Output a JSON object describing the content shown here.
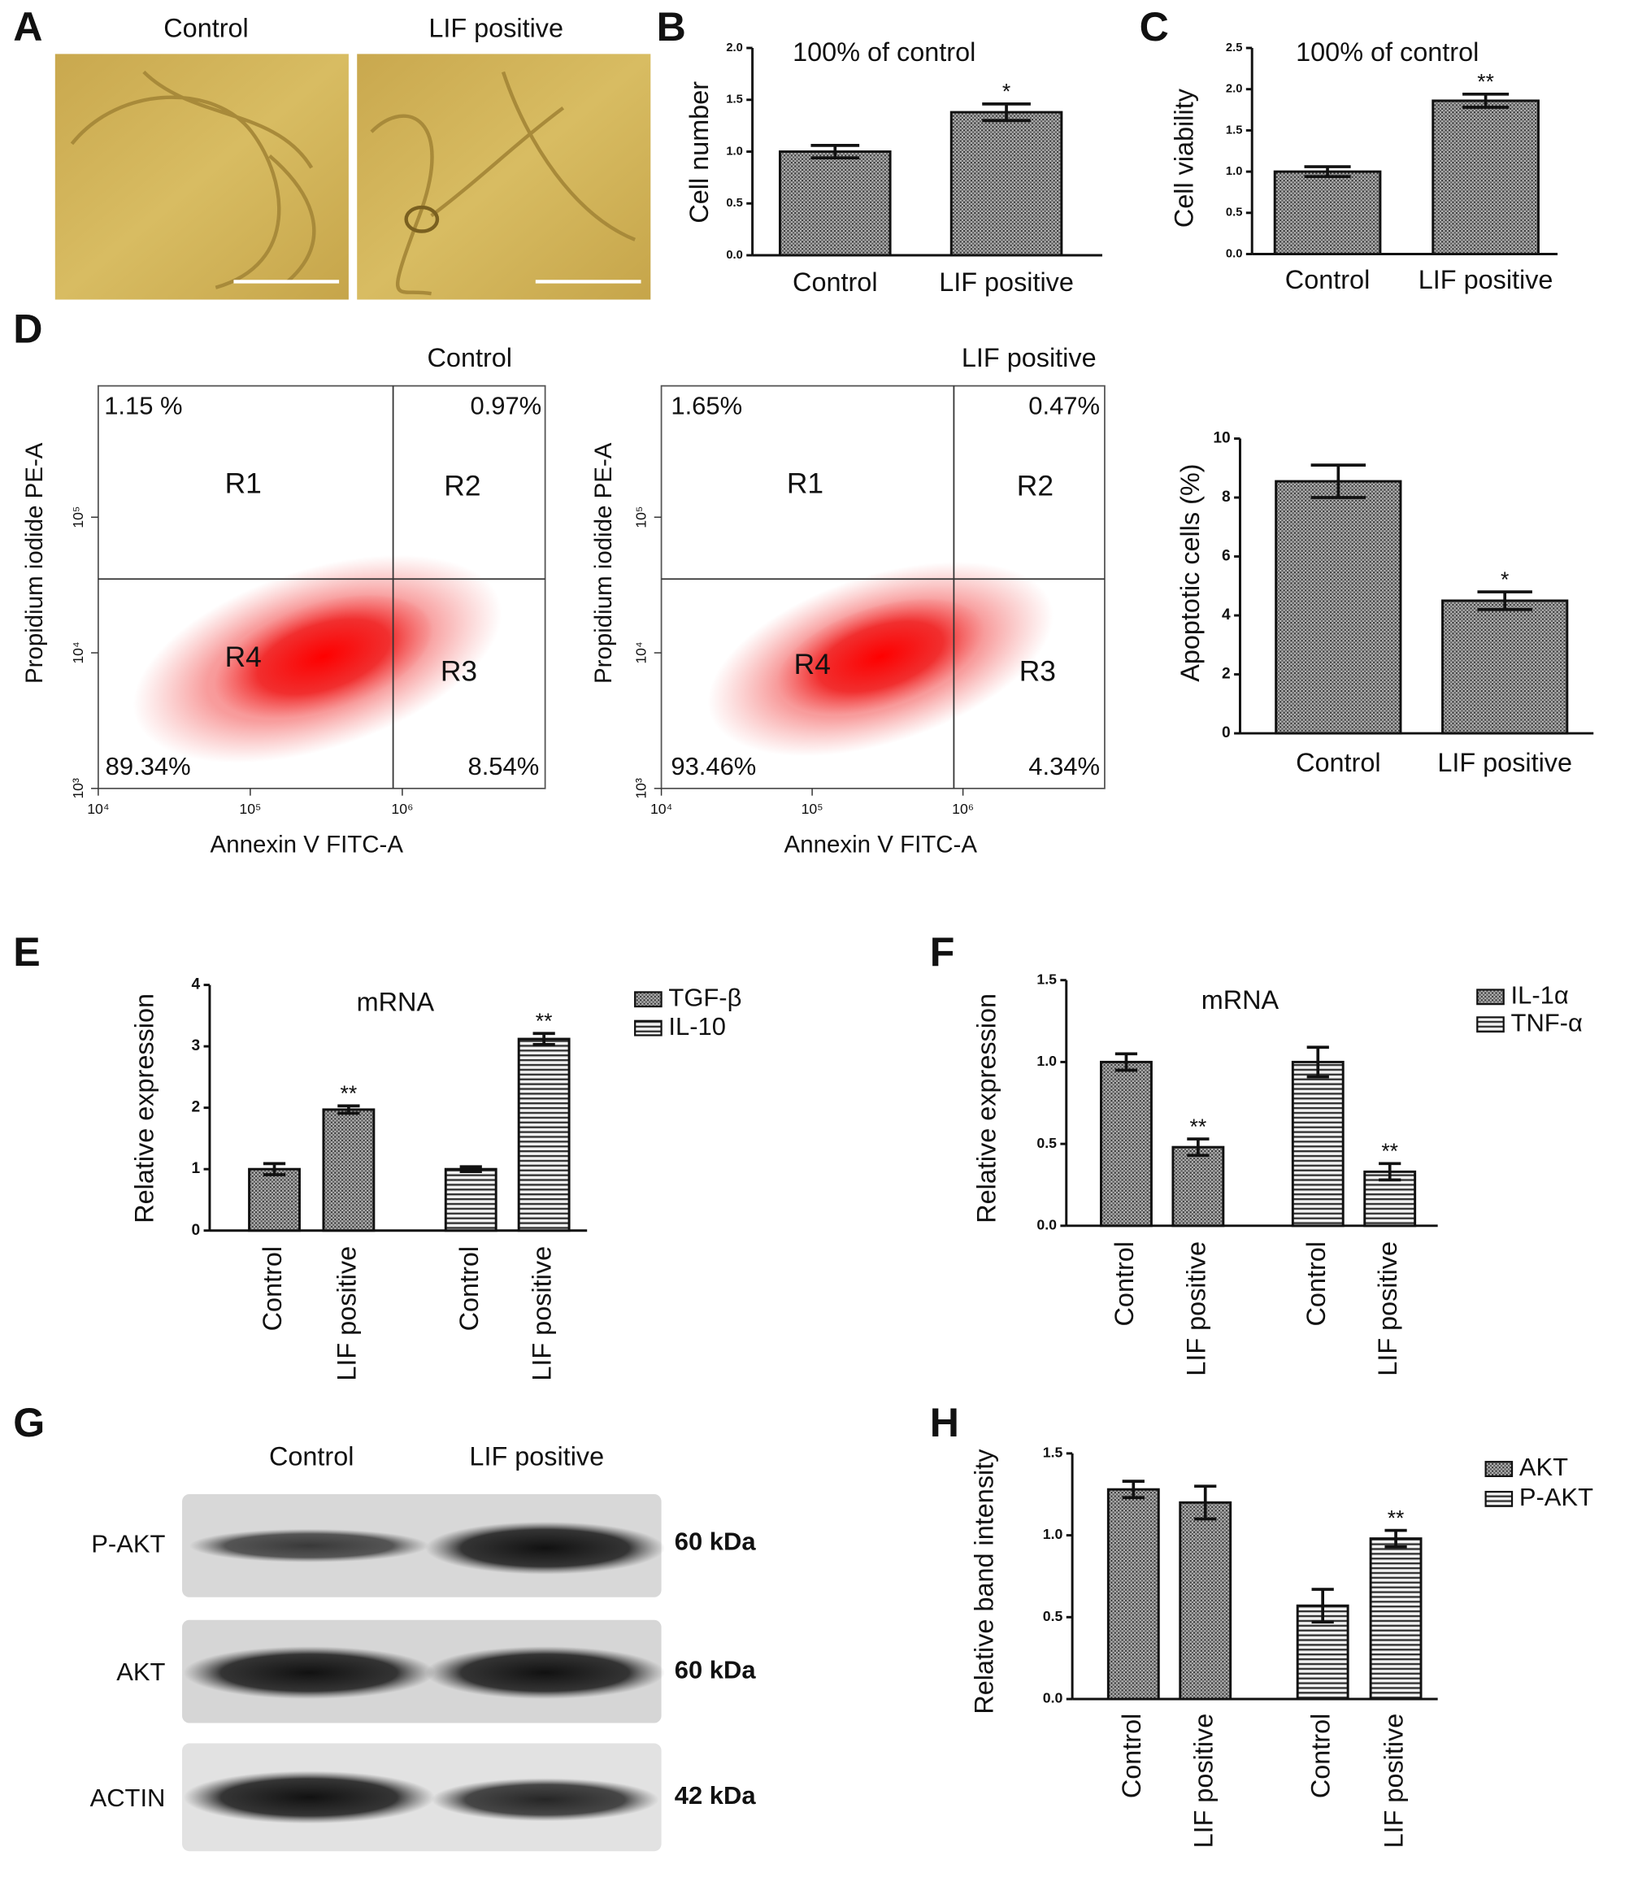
{
  "chart_data": [
    {
      "type": "micrograph",
      "panel": "A",
      "titles": [
        "Control",
        "LIF positive"
      ]
    },
    {
      "type": "bar",
      "panel": "B",
      "ylabel": "Cell number",
      "annotation": "100% of control",
      "categories": [
        "Control",
        "LIF positive"
      ],
      "values": [
        1.0,
        1.38
      ],
      "errors": [
        0.06,
        0.08
      ],
      "significance": [
        null,
        "*"
      ],
      "pattern": "dots",
      "ylim": [
        0,
        2
      ],
      "yticks": [
        {
          "value": 0,
          "label": "0.0"
        },
        0.5,
        {
          "value": 1,
          "label": "1.0"
        },
        1.5,
        {
          "value": 2,
          "label": "2.0"
        }
      ]
    },
    {
      "type": "bar",
      "panel": "C",
      "ylabel": "Cell viability",
      "annotation": "100% of control",
      "categories": [
        "Control",
        "LIF positive"
      ],
      "values": [
        1.0,
        1.86
      ],
      "errors": [
        0.06,
        0.08
      ],
      "significance": [
        null,
        "**"
      ],
      "pattern": "dots",
      "ylim": [
        0,
        2.5
      ],
      "yticks": [
        {
          "value": 0,
          "label": "0.0"
        },
        0.5,
        {
          "value": 1,
          "label": "1.0"
        },
        1.5,
        {
          "value": 2,
          "label": "2.0"
        },
        2.5
      ]
    },
    {
      "type": "flow",
      "panel": "D",
      "title": "Control",
      "xlabel": "Annexin V FITC-A",
      "ylabel": "Propidium iodide PE-A",
      "log_scale": true,
      "quadrants": [
        "R1",
        "R2",
        "R3",
        "R4"
      ],
      "values": [
        1.15,
        0.97,
        8.54,
        89.34
      ],
      "value_labels": [
        "1.15 %",
        "0.97%",
        "8.54%",
        "89.34%"
      ],
      "gate": {
        "x": 870000,
        "y": 35000
      },
      "xlim": [
        10000,
        8700000
      ],
      "xticks": [
        {
          "value": 10000,
          "label": "10⁴"
        },
        {
          "value": 100000,
          "label": "10⁵"
        },
        {
          "value": 1000000,
          "label": "10⁶"
        }
      ],
      "ylim": [
        1000,
        930000
      ],
      "yticks": [
        {
          "value": 1000,
          "label": "10³"
        },
        {
          "value": 10000,
          "label": "10⁴"
        },
        {
          "value": 100000,
          "label": "10⁵"
        }
      ]
    },
    {
      "type": "flow",
      "title": "LIF positive",
      "xlabel": "Annexin V FITC-A",
      "ylabel": "Propidium iodide PE-A",
      "log_scale": true,
      "quadrants": [
        "R1",
        "R2",
        "R3",
        "R4"
      ],
      "values": [
        1.65,
        0.47,
        4.34,
        93.46
      ],
      "value_labels": [
        "1.65%",
        "0.47%",
        "4.34%",
        "93.46%"
      ],
      "gate": {
        "x": 870000,
        "y": 35000
      },
      "xlim": [
        10000,
        8700000
      ],
      "xticks": [
        {
          "value": 10000,
          "label": "10⁴"
        },
        {
          "value": 100000,
          "label": "10⁵"
        },
        {
          "value": 1000000,
          "label": "10⁶"
        }
      ],
      "ylim": [
        1000,
        930000
      ],
      "yticks": [
        {
          "value": 1000,
          "label": "10³"
        },
        {
          "value": 10000,
          "label": "10⁴"
        },
        {
          "value": 100000,
          "label": "10⁵"
        }
      ]
    },
    {
      "type": "bar",
      "ylabel": "Apoptotic cells (%)",
      "categories": [
        "Control",
        "LIF positive"
      ],
      "values": [
        8.55,
        4.5
      ],
      "errors": [
        0.55,
        0.3
      ],
      "significance": [
        null,
        "*"
      ],
      "pattern": "dots",
      "ylim": [
        0,
        10
      ],
      "yticks": [
        0,
        2,
        4,
        6,
        8,
        10
      ]
    },
    {
      "type": "bar",
      "panel": "E",
      "ylabel": "Relative expression",
      "annotation": "mRNA",
      "categories": [
        "Control",
        "LIF positive"
      ],
      "series": [
        {
          "name": "TGF-β",
          "pattern": "dots",
          "values": [
            1.0,
            1.97
          ],
          "errors": [
            0.09,
            0.06
          ],
          "significance": [
            null,
            "**"
          ]
        },
        {
          "name": "IL-10",
          "pattern": "lines",
          "values": [
            1.0,
            3.12
          ],
          "errors": [
            0.04,
            0.09
          ],
          "significance": [
            null,
            "**"
          ]
        }
      ],
      "ylim": [
        0,
        4
      ],
      "yticks": [
        0,
        1,
        2,
        3,
        4
      ]
    },
    {
      "type": "bar",
      "panel": "F",
      "ylabel": "Relative expression",
      "annotation": "mRNA",
      "categories": [
        "Control",
        "LIF positive"
      ],
      "series": [
        {
          "name": "IL-1α",
          "pattern": "dots",
          "values": [
            1.0,
            0.48
          ],
          "errors": [
            0.05,
            0.05
          ],
          "significance": [
            null,
            "**"
          ]
        },
        {
          "name": "TNF-α",
          "pattern": "lines",
          "values": [
            1.0,
            0.33
          ],
          "errors": [
            0.09,
            0.05
          ],
          "significance": [
            null,
            "**"
          ]
        }
      ],
      "ylim": [
        0,
        1.5
      ],
      "yticks": [
        {
          "value": 0,
          "label": "0.0"
        },
        0.5,
        {
          "value": 1,
          "label": "1.0"
        },
        1.5
      ]
    },
    {
      "type": "blot",
      "panel": "G",
      "lanes": [
        "Control",
        "LIF positive"
      ],
      "rows": [
        {
          "name": "P-AKT",
          "size": "60 kDa"
        },
        {
          "name": "AKT",
          "size": "60 kDa"
        },
        {
          "name": "ACTIN",
          "size": "42 kDa"
        }
      ]
    },
    {
      "type": "bar",
      "panel": "H",
      "ylabel": "Relative band intensity",
      "categories": [
        "Control",
        "LIF positive"
      ],
      "series": [
        {
          "name": "AKT",
          "pattern": "dots",
          "values": [
            1.28,
            1.2
          ],
          "errors": [
            0.05,
            0.1
          ],
          "significance": [
            null,
            null
          ]
        },
        {
          "name": "P-AKT",
          "pattern": "lines",
          "values": [
            0.57,
            0.98
          ],
          "errors": [
            0.1,
            0.05
          ],
          "significance": [
            null,
            "**"
          ]
        }
      ],
      "ylim": [
        0,
        1.5
      ],
      "yticks": [
        {
          "value": 0,
          "label": "0.0"
        },
        0.5,
        {
          "value": 1,
          "label": "1.0"
        },
        1.5
      ]
    }
  ]
}
